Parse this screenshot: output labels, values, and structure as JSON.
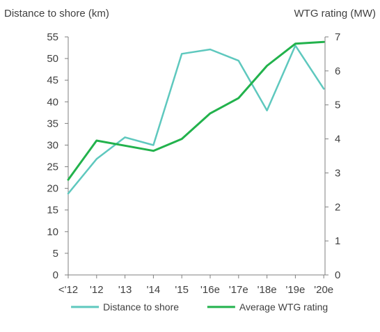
{
  "chart_data": {
    "type": "line",
    "left_axis_label": "Distance to shore (km)",
    "right_axis_label": "WTG rating (MW)",
    "categories": [
      "<'12",
      "'12",
      "'13",
      "'14",
      "'15",
      "'16e",
      "'17e",
      "'18e",
      "'19e",
      "'20e"
    ],
    "y_left": {
      "min": 0,
      "max": 55,
      "ticks": [
        0,
        5,
        10,
        15,
        20,
        25,
        30,
        35,
        40,
        45,
        50,
        55
      ]
    },
    "y_right": {
      "min": 0,
      "max": 7,
      "ticks": [
        0,
        1,
        2,
        3,
        4,
        5,
        6,
        7
      ]
    },
    "grid": false,
    "legend_position": "bottom",
    "series": [
      {
        "name": "Distance to shore",
        "axis": "left",
        "color": "#5ec8be",
        "values": [
          18.8,
          26.8,
          31.8,
          30.0,
          51.1,
          52.1,
          49.5,
          38.0,
          53.0,
          43.0
        ]
      },
      {
        "name": "Average WTG rating",
        "axis": "right",
        "color": "#22b24c",
        "values": [
          2.8,
          3.95,
          3.8,
          3.65,
          4.0,
          4.75,
          5.2,
          6.15,
          6.8,
          6.85
        ]
      }
    ]
  }
}
